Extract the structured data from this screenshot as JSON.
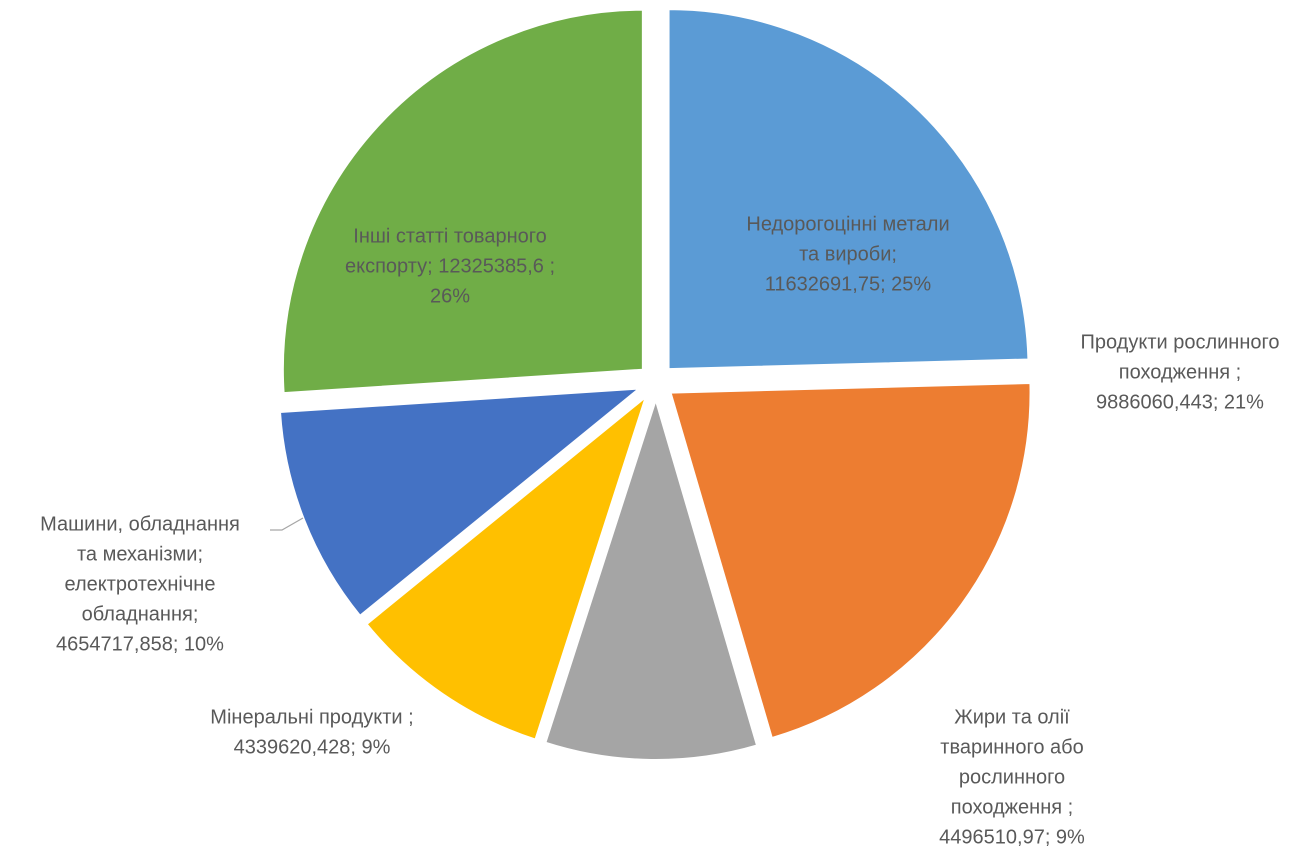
{
  "chart_data": {
    "type": "pie",
    "values": [
      11632691.75,
      9886060.443,
      4496510.97,
      4339620.428,
      4654717.858,
      12325385.6
    ],
    "colors": [
      "#5b9bd5",
      "#ed7d31",
      "#a5a5a5",
      "#ffc000",
      "#4472c4",
      "#70ad47"
    ],
    "data_labels": [
      [
        "Недорогоцінні метали",
        "та вироби;",
        "11632691,75; 25%"
      ],
      [
        "Продукти рослинного",
        "походження ;",
        "9886060,443; 21%"
      ],
      [
        "Жири та олії",
        "тваринного або",
        "рослинного",
        "походження ;",
        "4496510,97; 9%"
      ],
      [
        "Мінеральні продукти ;",
        "4339620,428; 9%"
      ],
      [
        "Машини, обладнання",
        "та механізми;",
        "електротехнічне",
        "обладнання;",
        "4654717,858; 10%"
      ],
      [
        "Інші статті товарного",
        "експорту; 12325385,6 ;",
        "26%"
      ]
    ]
  }
}
